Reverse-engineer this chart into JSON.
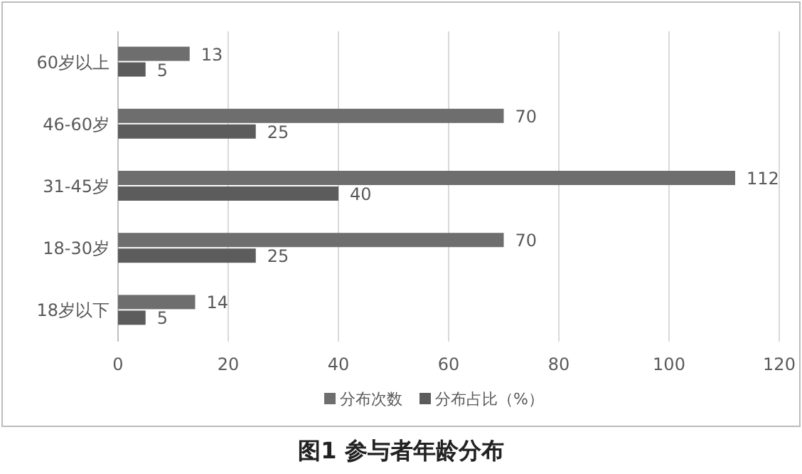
{
  "chart_data": {
    "type": "bar",
    "orientation": "horizontal",
    "title": "图1  参与者年龄分布",
    "categories": [
      "60岁以上",
      "46-60岁",
      "31-45岁",
      "18-30岁",
      "18岁以下"
    ],
    "series": [
      {
        "name": "分布次数",
        "color": "#6e6e6e",
        "values": [
          13,
          70,
          112,
          70,
          14
        ]
      },
      {
        "name": "分布占比（%）",
        "color": "#5c5c5c",
        "values": [
          5,
          25,
          40,
          25,
          5
        ]
      }
    ],
    "xlim": [
      0,
      120
    ],
    "xticks": [
      0,
      20,
      40,
      60,
      80,
      100,
      120
    ],
    "grid": "x",
    "legend": "bottom",
    "data_labels": true
  }
}
